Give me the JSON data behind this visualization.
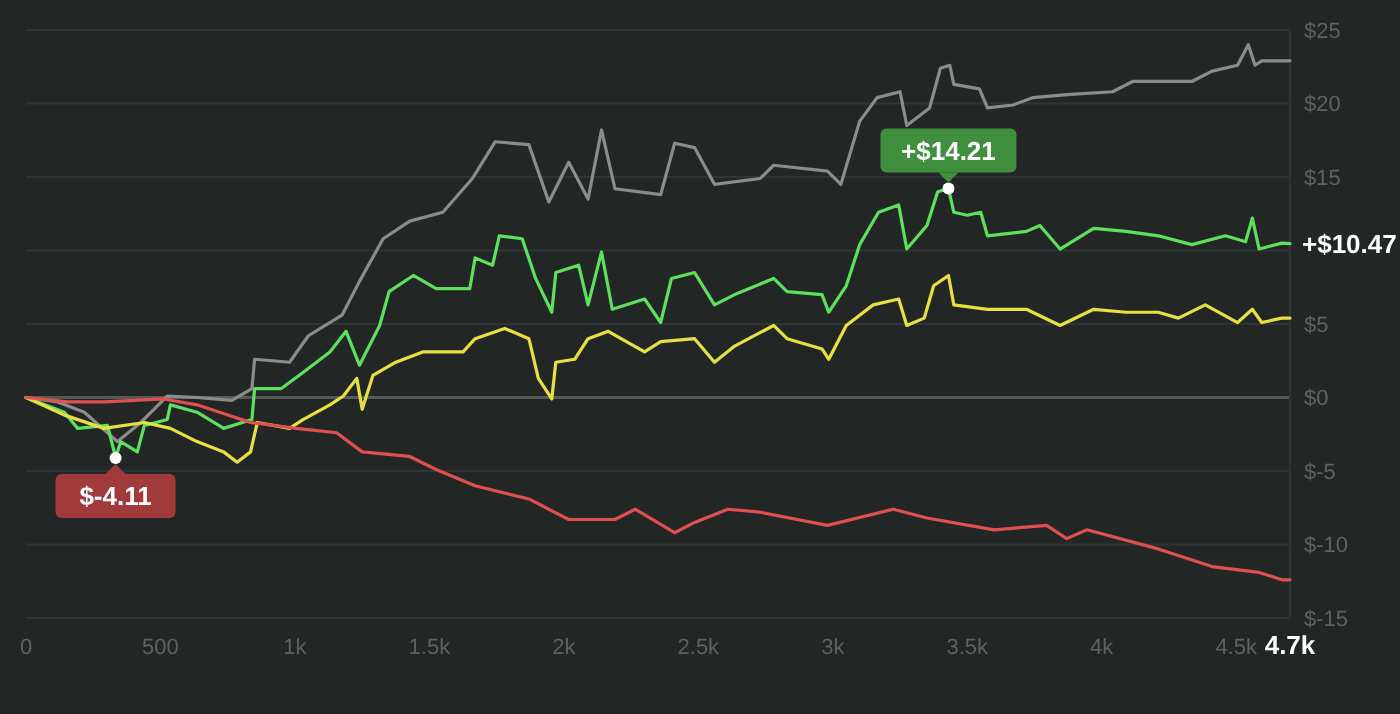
{
  "chart_data": {
    "type": "line",
    "xlim": [
      0,
      4700
    ],
    "xticks": [
      0,
      500,
      {
        "value": 1000,
        "label": "1k"
      },
      {
        "value": 1500,
        "label": "1.5k"
      },
      {
        "value": 2000,
        "label": "2k"
      },
      {
        "value": 2500,
        "label": "2.5k"
      },
      {
        "value": 3000,
        "label": "3k"
      },
      {
        "value": 3500,
        "label": "3.5k"
      },
      {
        "value": 4000,
        "label": "4k"
      },
      {
        "value": 4500,
        "label": "4.5k"
      },
      {
        "value": 4700,
        "label": "4.7k"
      }
    ],
    "ylim": [
      -15,
      25
    ],
    "yticks": [
      {
        "value": -15,
        "label": "$-15"
      },
      {
        "value": -10,
        "label": "$-10"
      },
      {
        "value": -5,
        "label": "$-5"
      },
      {
        "value": 0,
        "label": "$0"
      },
      {
        "value": 5,
        "label": "$5"
      },
      {
        "value": 10,
        "label": null
      },
      {
        "value": 15,
        "label": "$15"
      },
      {
        "value": 20,
        "label": "$20"
      },
      {
        "value": 25,
        "label": "$25"
      }
    ],
    "grid": "y",
    "marker": "none",
    "line_style": "solid",
    "annotations": [
      {
        "text": "+$14.21",
        "x": 3430,
        "y": 14.21
      },
      {
        "text": "$-4.11",
        "x": 333,
        "y": -4.11
      },
      {
        "text": "+$10.47",
        "x": 4700,
        "y": 10.47
      }
    ],
    "series": [
      {
        "color": "#8c8c8c",
        "x": [
          0,
          118,
          217,
          340,
          427,
          525,
          636,
          766,
          840,
          850,
          980,
          1050,
          1175,
          1240,
          1328,
          1427,
          1550,
          1660,
          1745,
          1870,
          1944,
          2018,
          2090,
          2140,
          2190,
          2360,
          2412,
          2486,
          2560,
          2730,
          2780,
          2980,
          3030,
          3100,
          3165,
          3250,
          3275,
          3360,
          3400,
          3435,
          3450,
          3545,
          3575,
          3670,
          3745,
          3870,
          4040,
          4115,
          4335,
          4410,
          4505,
          4545,
          4570,
          4595,
          4655,
          4700
        ],
        "values": [
          0,
          -0.3,
          -1,
          -3,
          -1.7,
          0.1,
          0,
          -0.2,
          0.6,
          2.6,
          2.4,
          4.2,
          5.6,
          7.9,
          10.8,
          12,
          12.6,
          14.9,
          17.4,
          17.2,
          13.3,
          16,
          13.5,
          18.2,
          14.2,
          13.8,
          17.3,
          17,
          14.5,
          14.9,
          15.8,
          15.4,
          14.5,
          18.8,
          20.4,
          20.8,
          18.5,
          19.7,
          22.4,
          22.6,
          21.3,
          21,
          19.7,
          19.9,
          20.4,
          20.6,
          20.8,
          21.5,
          21.5,
          22.2,
          22.6,
          24,
          22.6,
          22.9,
          22.9,
          22.9
        ]
      },
      {
        "color": "#5ee05e",
        "x": [
          0,
          143,
          192,
          303,
          328,
          333,
          352,
          414,
          440,
          525,
          537,
          636,
          735,
          840,
          850,
          948,
          1030,
          1130,
          1190,
          1240,
          1315,
          1350,
          1440,
          1525,
          1650,
          1670,
          1735,
          1760,
          1845,
          1895,
          1955,
          1970,
          2055,
          2090,
          2140,
          2180,
          2300,
          2360,
          2400,
          2486,
          2560,
          2635,
          2780,
          2830,
          2960,
          2985,
          3050,
          3100,
          3170,
          3245,
          3275,
          3350,
          3390,
          3430,
          3450,
          3500,
          3550,
          3575,
          3720,
          3770,
          3845,
          3970,
          4090,
          4210,
          4335,
          4460,
          4535,
          4560,
          4585,
          4670,
          4700
        ],
        "values": [
          0,
          -1,
          -2.1,
          -1.9,
          -3.7,
          -4.11,
          -3,
          -3.7,
          -1.9,
          -1.5,
          -0.5,
          -1,
          -2.1,
          -1.5,
          0.6,
          0.6,
          1.7,
          3.1,
          4.5,
          2.2,
          4.9,
          7.2,
          8.3,
          7.4,
          7.4,
          9.5,
          9,
          11,
          10.8,
          8.1,
          5.8,
          8.5,
          9,
          6.3,
          9.9,
          6,
          6.7,
          5.1,
          8.1,
          8.5,
          6.3,
          7,
          8.1,
          7.2,
          7,
          5.8,
          7.6,
          10.4,
          12.6,
          13.1,
          10.1,
          11.7,
          14,
          14.21,
          12.6,
          12.4,
          12.6,
          11,
          11.3,
          11.7,
          10.1,
          11.5,
          11.3,
          11,
          10.4,
          11,
          10.6,
          12.2,
          10.1,
          10.5,
          10.47
        ]
      },
      {
        "color": "#e8e040",
        "x": [
          0,
          143,
          290,
          440,
          537,
          636,
          735,
          785,
          835,
          860,
          980,
          1030,
          1130,
          1180,
          1230,
          1250,
          1290,
          1375,
          1475,
          1625,
          1670,
          1780,
          1870,
          1905,
          1955,
          1970,
          2040,
          2090,
          2165,
          2300,
          2360,
          2486,
          2560,
          2635,
          2780,
          2830,
          2960,
          2985,
          3050,
          3150,
          3245,
          3275,
          3340,
          3375,
          3430,
          3450,
          3575,
          3720,
          3845,
          3970,
          4090,
          4210,
          4285,
          4385,
          4505,
          4560,
          4595,
          4670,
          4700
        ],
        "values": [
          0,
          -1.2,
          -2.1,
          -1.7,
          -2.1,
          -3,
          -3.7,
          -4.4,
          -3.7,
          -1.7,
          -2.1,
          -1.5,
          -0.5,
          0.1,
          1.3,
          -0.8,
          1.5,
          2.4,
          3.1,
          3.1,
          4,
          4.7,
          4,
          1.3,
          -0.1,
          2.4,
          2.6,
          4,
          4.5,
          3.1,
          3.8,
          4,
          2.4,
          3.5,
          4.9,
          4,
          3.3,
          2.6,
          4.9,
          6.3,
          6.7,
          4.9,
          5.4,
          7.6,
          8.3,
          6.3,
          6,
          6,
          4.9,
          6,
          5.8,
          5.8,
          5.4,
          6.3,
          5.1,
          6,
          5.1,
          5.4,
          5.4
        ]
      },
      {
        "color": "#e05050",
        "x": [
          0,
          155,
          290,
          512,
          636,
          835,
          1005,
          1155,
          1250,
          1425,
          1525,
          1670,
          1870,
          2018,
          2190,
          2265,
          2412,
          2486,
          2610,
          2730,
          2980,
          3225,
          3350,
          3600,
          3795,
          3870,
          3945,
          4210,
          4410,
          4585,
          4670,
          4700
        ],
        "values": [
          0,
          -0.3,
          -0.3,
          -0.1,
          -0.5,
          -1.7,
          -2.1,
          -2.4,
          -3.7,
          -4,
          -4.9,
          -6,
          -6.9,
          -8.3,
          -8.3,
          -7.6,
          -9.2,
          -8.5,
          -7.6,
          -7.8,
          -8.7,
          -7.6,
          -8.2,
          -9,
          -8.7,
          -9.6,
          -9,
          -10.3,
          -11.5,
          -11.9,
          -12.4,
          -12.4
        ]
      }
    ]
  }
}
